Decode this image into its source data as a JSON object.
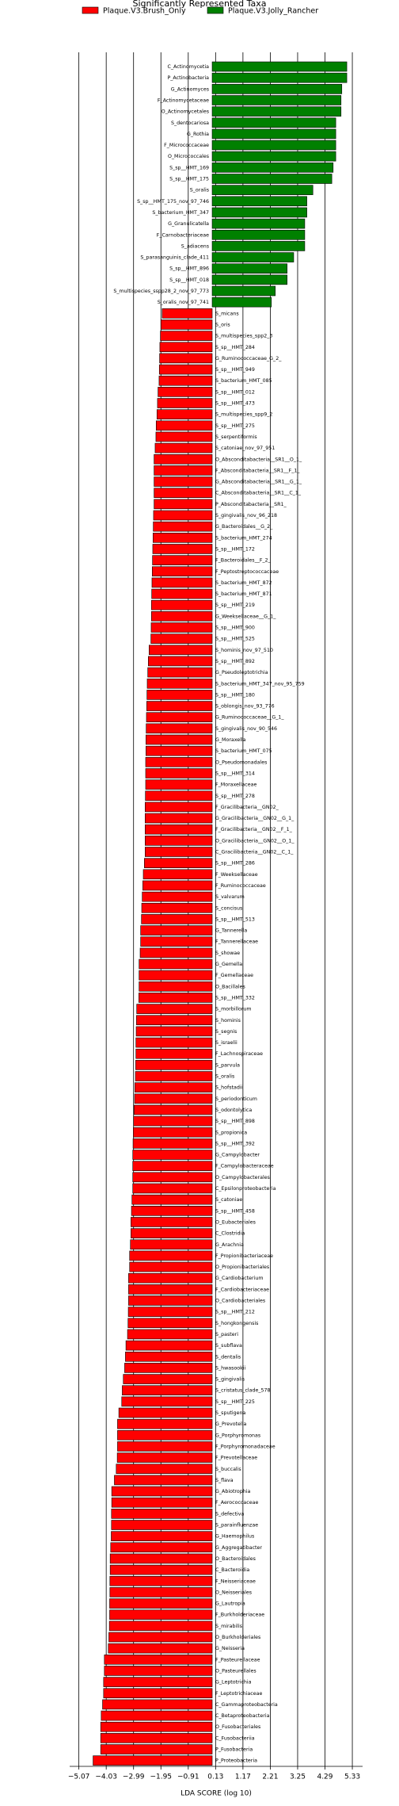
{
  "chart_data": {
    "type": "bar",
    "orientation": "horizontal",
    "title": "Significantly Represented Taxa",
    "xlabel": "LDA SCORE (log 10)",
    "xlim": [
      -5.42,
      5.72
    ],
    "xticks": [
      {
        "value": -5.07,
        "label": "−5.07"
      },
      {
        "value": -4.03,
        "label": "−4.03"
      },
      {
        "value": -2.99,
        "label": "−2.99"
      },
      {
        "value": -1.95,
        "label": "−1.95"
      },
      {
        "value": -0.91,
        "label": "−0.91"
      },
      0.13,
      1.17,
      2.21,
      3.25,
      4.29,
      5.33
    ],
    "grid": true,
    "series": [
      {
        "name": "Plaque.V3.Brush_Only",
        "color": "#ff0000",
        "categories": [
          "S_micans",
          "S_oris",
          "S_multispecies_spp2_3",
          "S_sp__HMT_284",
          "G_Ruminococcaceae_G_2_",
          "S_sp__HMT_949",
          "S_bacterium_HMT_085",
          "S_sp__HMT_012",
          "S_sp__HMT_473",
          "S_multispecies_spp9_2",
          "S_sp__HMT_275",
          "S_serpentiformis",
          "S_catoniae_nov_97_951",
          "O_Absconditabacteria__SR1__O_1_",
          "F_Absconditabacteria__SR1__F_1_",
          "G_Absconditabacteria__SR1__G_1_",
          "C_Absconditabacteria__SR1__C_1_",
          "P_Absconditabacteria__SR1_",
          "S_gingivalis_nov_96_218",
          "G_Bacteroidales__G_2_",
          "S_bacterium_HMT_274",
          "S_sp__HMT_172",
          "F_Bacteroidales__F_2_",
          "F_Peptostreptococcaceae",
          "S_bacterium_HMT_872",
          "S_bacterium_HMT_871",
          "S_sp__HMT_219",
          "G_Weeksellaceae__G_1_",
          "S_sp__HMT_900",
          "S_sp__HMT_525",
          "S_hominis_nov_97_510",
          "S_sp__HMT_892",
          "G_Pseudoleptotrichia",
          "S_bacterium_HMT_347_nov_95_759",
          "S_sp__HMT_180",
          "S_oblongis_nov_93_776",
          "G_Ruminococcaceae__G_1_",
          "S_gingivalis_nov_90_546",
          "G_Moraxella",
          "S_bacterium_HMT_075",
          "O_Pseudomonadales",
          "S_sp__HMT_314",
          "F_Moraxellaceae",
          "S_sp__HMT_278",
          "F_Gracilibacteria__GN02_",
          "G_Gracilibacteria__GN02__G_1_",
          "F_Gracilibacteria__GN02__F_1_",
          "O_Gracilibacteria__GN02__O_1_",
          "C_Gracilibacteria__GN02__C_1_",
          "S_sp__HMT_286",
          "F_Weeksellaceae",
          "F_Ruminococcaceae",
          "S_valvarum",
          "S_concisus",
          "S_sp__HMT_513",
          "G_Tannerella",
          "F_Tannerellaceae",
          "S_showae",
          "G_Gemella",
          "F_Gemellaceae",
          "O_Bacillales",
          "S_sp__HMT_332",
          "S_morbillorum",
          "S_hominis",
          "S_segnis",
          "S_israelii",
          "F_Lachnospiraceae",
          "S_parvula",
          "S_oralis",
          "S_hofstadii",
          "S_periodonticum",
          "S_odontolytica",
          "S_sp__HMT_898",
          "S_propionica",
          "S_sp__HMT_392",
          "G_Campylobacter",
          "F_Campylobacteraceae",
          "O_Campylobacterales",
          "C_Epsilonproteobacteria",
          "S_catoniae",
          "S_sp__HMT_458",
          "O_Eubacteriales",
          "C_Clostridia",
          "G_Arachnia",
          "F_Propionibacteriaceae",
          "O_Propionibacteriales",
          "G_Cardiobacterium",
          "F_Cardiobacteriaceae",
          "O_Cardiobacteriales",
          "S_sp__HMT_212",
          "S_hongkongensis",
          "S_pasteri",
          "S_subflava",
          "S_dentalis",
          "S_hwasookii",
          "S_gingivalis",
          "S_cristatus_clade_578",
          "S_sp__HMT_225",
          "S_sputigena",
          "G_Prevotella",
          "G_Porphyromonas",
          "F_Porphyromonadaceae",
          "F_Prevotellaceae",
          "S_buccalis",
          "S_flava",
          "G_Abiotrophia",
          "F_Aerococcaceae",
          "S_defectiva",
          "S_parainfluenzae",
          "G_Haemophilus",
          "G_Aggregatibacter",
          "O_Bacteroidales",
          "C_Bacteroidia",
          "F_Neisseriaceae",
          "O_Neisseriales",
          "G_Lautropia",
          "F_Burkholderiaceae",
          "S_mirabilis",
          "O_Burkholderiales",
          "G_Neisseria",
          "F_Pasteurellaceae",
          "O_Pasteurellales",
          "G_Leptotrichia",
          "F_Leptotrichiaceae",
          "C_Gammaproteobacteria",
          "C_Betaproteobacteria",
          "O_Fusobacteriales",
          "C_Fusobacteriia",
          "P_Fusobacteria",
          "P_Proteobacteria"
        ],
        "values": [
          -1.9,
          -1.95,
          -1.97,
          -1.99,
          -2.0,
          -2.01,
          -2.02,
          -2.06,
          -2.08,
          -2.1,
          -2.13,
          -2.14,
          -2.17,
          -2.21,
          -2.21,
          -2.21,
          -2.21,
          -2.21,
          -2.23,
          -2.24,
          -2.25,
          -2.26,
          -2.27,
          -2.28,
          -2.29,
          -2.3,
          -2.31,
          -2.31,
          -2.32,
          -2.33,
          -2.4,
          -2.43,
          -2.45,
          -2.47,
          -2.48,
          -2.49,
          -2.5,
          -2.51,
          -2.52,
          -2.52,
          -2.53,
          -2.53,
          -2.53,
          -2.54,
          -2.55,
          -2.55,
          -2.55,
          -2.55,
          -2.55,
          -2.58,
          -2.62,
          -2.64,
          -2.66,
          -2.68,
          -2.69,
          -2.72,
          -2.72,
          -2.74,
          -2.78,
          -2.78,
          -2.78,
          -2.79,
          -2.87,
          -2.88,
          -2.89,
          -2.9,
          -2.9,
          -2.91,
          -2.92,
          -2.94,
          -2.95,
          -2.97,
          -2.99,
          -3.0,
          -3.01,
          -3.02,
          -3.02,
          -3.02,
          -3.02,
          -3.05,
          -3.07,
          -3.09,
          -3.09,
          -3.11,
          -3.14,
          -3.14,
          -3.18,
          -3.18,
          -3.18,
          -3.19,
          -3.2,
          -3.22,
          -3.28,
          -3.3,
          -3.33,
          -3.38,
          -3.42,
          -3.44,
          -3.55,
          -3.6,
          -3.6,
          -3.6,
          -3.61,
          -3.65,
          -3.72,
          -3.82,
          -3.82,
          -3.83,
          -3.83,
          -3.84,
          -3.86,
          -3.88,
          -3.88,
          -3.89,
          -3.89,
          -3.9,
          -3.9,
          -3.91,
          -3.93,
          -3.95,
          -4.1,
          -4.1,
          -4.13,
          -4.13,
          -4.17,
          -4.22,
          -4.24,
          -4.24,
          -4.24,
          -4.53
        ]
      },
      {
        "name": "Plaque.V3.Jolly_Rancher",
        "color": "#008000",
        "categories": [
          "C_Actinomycetia",
          "P_Actinobacteria",
          "G_Actinomyces",
          "F_Actinomycetaceae",
          "O_Actinomycetales",
          "S_dentocariosa",
          "G_Rothia",
          "F_Micrococcaceae",
          "O_Micrococcales",
          "S_sp__HMT_169",
          "S_sp__HMT_175",
          "S_oralis",
          "S_sp__HMT_175_nov_97_746",
          "S_bacterium_HMT_347",
          "G_Granulicatella",
          "F_Carnobacteriaceae",
          "S_adiacens",
          "S_parasanguinis_clade_411",
          "S_sp__HMT_896",
          "S_sp__HMT_018",
          "S_multispecies_sspp28_2_nov_97_773",
          "S_oralis_nov_97_741"
        ],
        "values": [
          5.12,
          5.12,
          4.93,
          4.9,
          4.9,
          4.7,
          4.7,
          4.7,
          4.7,
          4.6,
          4.55,
          3.83,
          3.6,
          3.6,
          3.52,
          3.52,
          3.52,
          3.1,
          2.85,
          2.85,
          2.4,
          2.25
        ]
      }
    ]
  }
}
